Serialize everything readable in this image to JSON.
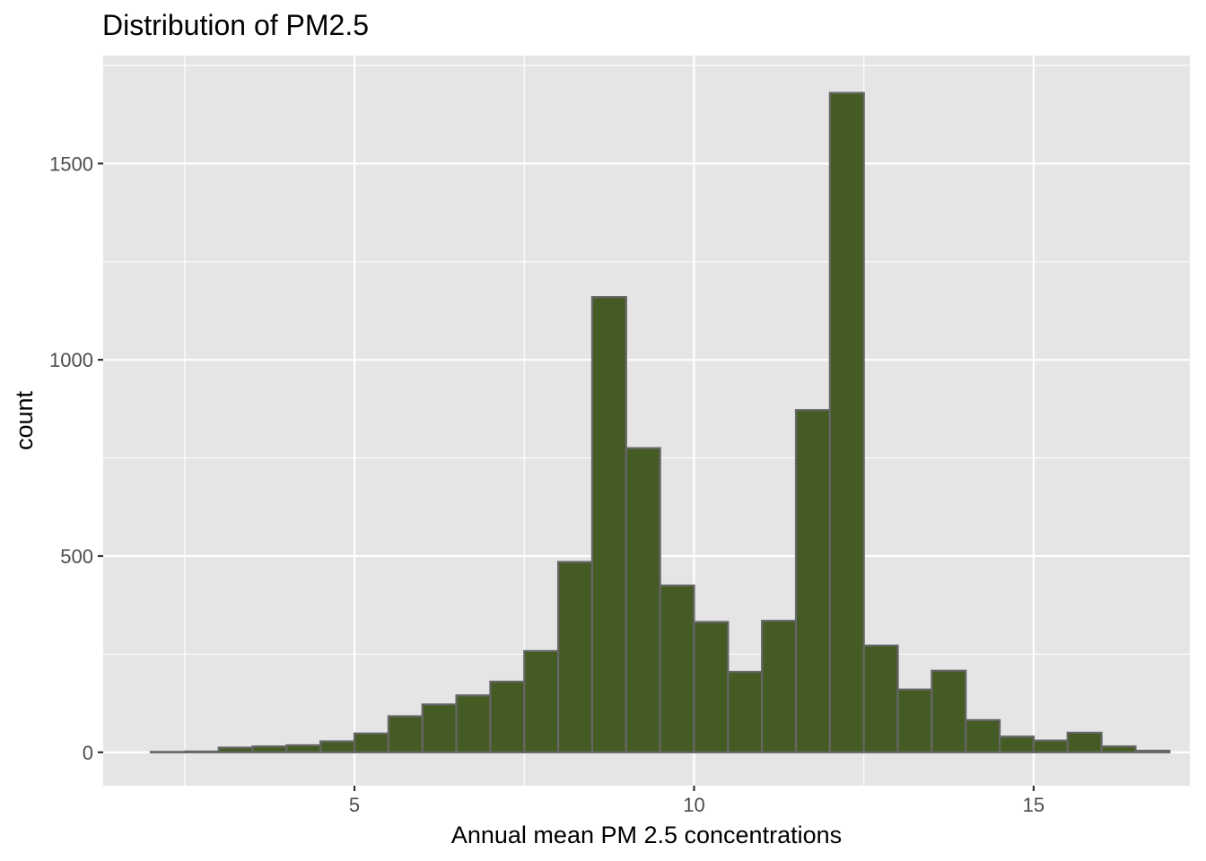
{
  "chart_data": {
    "type": "bar",
    "title": "Distribution of PM2.5",
    "xlabel": "Annual mean PM 2.5 concentrations",
    "ylabel": "count",
    "xlim": [
      1.3,
      17.3
    ],
    "ylim": [
      -85,
      1775
    ],
    "x_ticks": [
      5,
      10,
      15
    ],
    "x_tick_labels": [
      "5",
      "10",
      "15"
    ],
    "y_ticks": [
      0,
      500,
      1000,
      1500
    ],
    "y_tick_labels": [
      "0",
      "500",
      "1000",
      "1500"
    ],
    "grid": true,
    "colors": {
      "panel": "#e5e5e5",
      "grid": "#ffffff",
      "bar_fill": "#445c24",
      "bar_outline": "#666666"
    },
    "bins": [
      {
        "x0": 2.0,
        "x1": 2.5,
        "count": 1
      },
      {
        "x0": 2.5,
        "x1": 3.0,
        "count": 2
      },
      {
        "x0": 3.0,
        "x1": 3.5,
        "count": 12
      },
      {
        "x0": 3.5,
        "x1": 4.0,
        "count": 15
      },
      {
        "x0": 4.0,
        "x1": 4.5,
        "count": 18
      },
      {
        "x0": 4.5,
        "x1": 5.0,
        "count": 28
      },
      {
        "x0": 5.0,
        "x1": 5.5,
        "count": 48
      },
      {
        "x0": 5.5,
        "x1": 6.0,
        "count": 92
      },
      {
        "x0": 6.0,
        "x1": 6.5,
        "count": 122
      },
      {
        "x0": 6.5,
        "x1": 7.0,
        "count": 145
      },
      {
        "x0": 7.0,
        "x1": 7.5,
        "count": 180
      },
      {
        "x0": 7.5,
        "x1": 8.0,
        "count": 258
      },
      {
        "x0": 8.0,
        "x1": 8.5,
        "count": 485
      },
      {
        "x0": 8.5,
        "x1": 9.0,
        "count": 1160
      },
      {
        "x0": 9.0,
        "x1": 9.5,
        "count": 775
      },
      {
        "x0": 9.5,
        "x1": 10.0,
        "count": 425
      },
      {
        "x0": 10.0,
        "x1": 10.5,
        "count": 332
      },
      {
        "x0": 10.5,
        "x1": 11.0,
        "count": 205
      },
      {
        "x0": 11.0,
        "x1": 11.5,
        "count": 335
      },
      {
        "x0": 11.5,
        "x1": 12.0,
        "count": 872
      },
      {
        "x0": 12.0,
        "x1": 12.5,
        "count": 1680
      },
      {
        "x0": 12.5,
        "x1": 13.0,
        "count": 272
      },
      {
        "x0": 13.0,
        "x1": 13.5,
        "count": 160
      },
      {
        "x0": 13.5,
        "x1": 14.0,
        "count": 208
      },
      {
        "x0": 14.0,
        "x1": 14.5,
        "count": 82
      },
      {
        "x0": 14.5,
        "x1": 15.0,
        "count": 40
      },
      {
        "x0": 15.0,
        "x1": 15.5,
        "count": 30
      },
      {
        "x0": 15.5,
        "x1": 16.0,
        "count": 50
      },
      {
        "x0": 16.0,
        "x1": 16.5,
        "count": 15
      },
      {
        "x0": 16.5,
        "x1": 17.0,
        "count": 4
      }
    ]
  }
}
